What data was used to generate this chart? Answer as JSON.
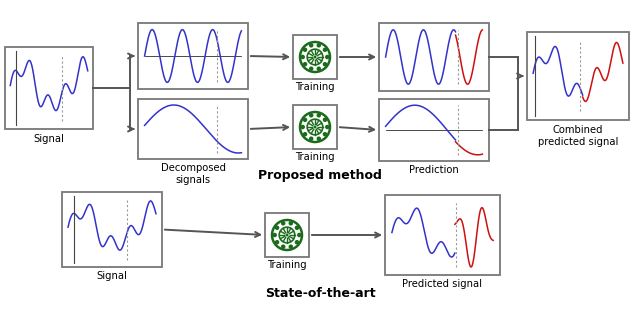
{
  "title_proposed": "Proposed method",
  "title_sota": "State-of-the-art",
  "label_signal": "Signal",
  "label_decomposed": "Decomposed\nsignals",
  "label_training": "Training",
  "label_prediction": "Prediction",
  "label_combined": "Combined\npredicted signal",
  "label_sota_signal": "Signal",
  "label_sota_training": "Training",
  "label_sota_predicted": "Predicted signal",
  "bg_color": "#ffffff",
  "box_edge_color": "#777777",
  "arrow_color": "#555555",
  "blue": "#3333cc",
  "red": "#cc1111",
  "green_dark": "#1a6b1a",
  "green_light": "#2a9a2a"
}
